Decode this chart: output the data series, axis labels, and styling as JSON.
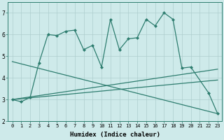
{
  "xlabel": "Humidex (Indice chaleur)",
  "series_main": {
    "x": [
      0,
      1,
      2,
      3,
      4,
      5,
      6,
      7,
      8,
      9,
      10,
      11,
      12,
      13,
      14,
      15,
      16,
      17,
      18,
      19,
      20,
      22,
      23
    ],
    "y": [
      3.0,
      2.9,
      3.1,
      4.7,
      6.0,
      5.95,
      6.15,
      6.2,
      5.3,
      5.5,
      4.5,
      6.7,
      5.3,
      5.8,
      5.85,
      6.7,
      6.4,
      7.0,
      6.7,
      4.45,
      4.5,
      3.3,
      2.35
    ]
  },
  "diag_up1": {
    "x": [
      0,
      23
    ],
    "y": [
      3.0,
      4.4
    ]
  },
  "diag_up2": {
    "x": [
      0,
      23
    ],
    "y": [
      3.0,
      3.9
    ]
  },
  "diag_down": {
    "x": [
      0,
      23
    ],
    "y": [
      4.75,
      2.35
    ]
  },
  "color": "#2e7d6f",
  "bg_color": "#ceeaea",
  "grid_color": "#aecece",
  "ylim": [
    2.0,
    7.5
  ],
  "xlim": [
    -0.5,
    23.5
  ],
  "yticks": [
    2,
    3,
    4,
    5,
    6,
    7
  ],
  "xticks": [
    0,
    1,
    2,
    3,
    4,
    5,
    6,
    7,
    8,
    9,
    10,
    11,
    12,
    13,
    14,
    15,
    16,
    17,
    18,
    19,
    20,
    21,
    22,
    23
  ],
  "marker": "D",
  "markersize": 2.0,
  "linewidth": 0.9,
  "tick_fontsize": 5.0,
  "xlabel_fontsize": 6.5
}
